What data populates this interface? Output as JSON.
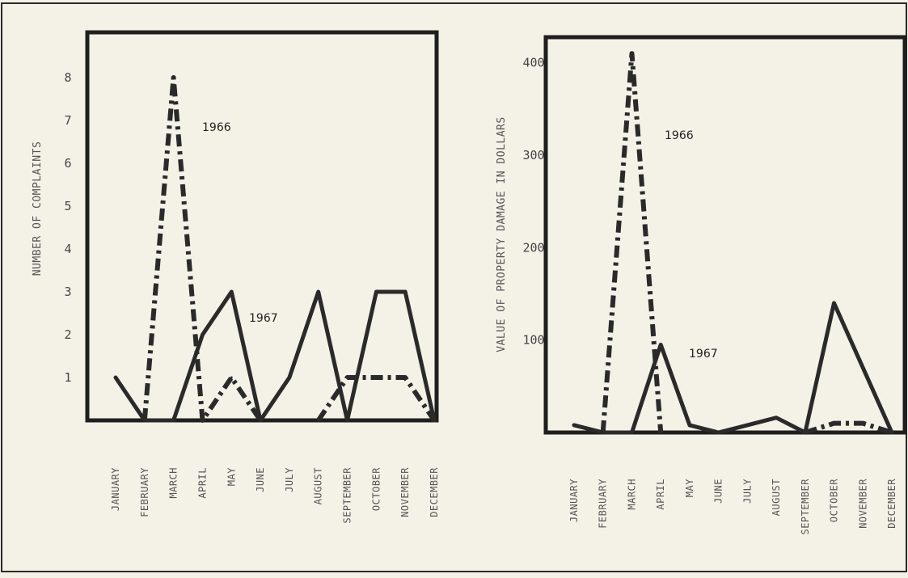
{
  "chart_data": [
    {
      "type": "line",
      "ylabel": "NUMBER OF COMPLAINTS",
      "ylim": [
        0,
        9
      ],
      "yticks": [
        "1",
        "2",
        "3",
        "4",
        "5",
        "6",
        "7",
        "8"
      ],
      "categories": [
        "JANUARY",
        "FEBRUARY",
        "MARCH",
        "APRIL",
        "MAY",
        "JUNE",
        "JULY",
        "AUGUST",
        "SEPTEMBER",
        "OCTOBER",
        "NOVEMBER",
        "DECEMBER"
      ],
      "series": [
        {
          "name": "1966",
          "style": "dash-dot",
          "values": [
            null,
            0,
            8,
            0,
            1,
            0,
            null,
            0,
            1,
            1,
            1,
            0
          ]
        },
        {
          "name": "1967",
          "style": "solid",
          "values": [
            1,
            0,
            0,
            2,
            3,
            0,
            1,
            3,
            0,
            3,
            3,
            0
          ]
        }
      ],
      "grid": false,
      "line_color": "#2a2a2a"
    },
    {
      "type": "line",
      "ylabel": "VALUE OF PROPERTY DAMAGE IN DOLLARS",
      "ylim": [
        0,
        425
      ],
      "yticks": [
        "100",
        "200",
        "300",
        "400"
      ],
      "categories": [
        "JANUARY",
        "FEBRUARY",
        "MARCH",
        "APRIL",
        "MAY",
        "JUNE",
        "JULY",
        "AUGUST",
        "SEPTEMBER",
        "OCTOBER",
        "NOVEMBER",
        "DECEMBER"
      ],
      "series": [
        {
          "name": "1966",
          "style": "dash-dot",
          "values": [
            null,
            0,
            410,
            0,
            null,
            null,
            null,
            null,
            0,
            10,
            10,
            0
          ]
        },
        {
          "name": "1967",
          "style": "solid",
          "values": [
            8,
            0,
            0,
            95,
            8,
            0,
            8,
            16,
            0,
            140,
            70,
            0
          ]
        }
      ],
      "grid": false,
      "line_color": "#2a2a2a"
    }
  ]
}
